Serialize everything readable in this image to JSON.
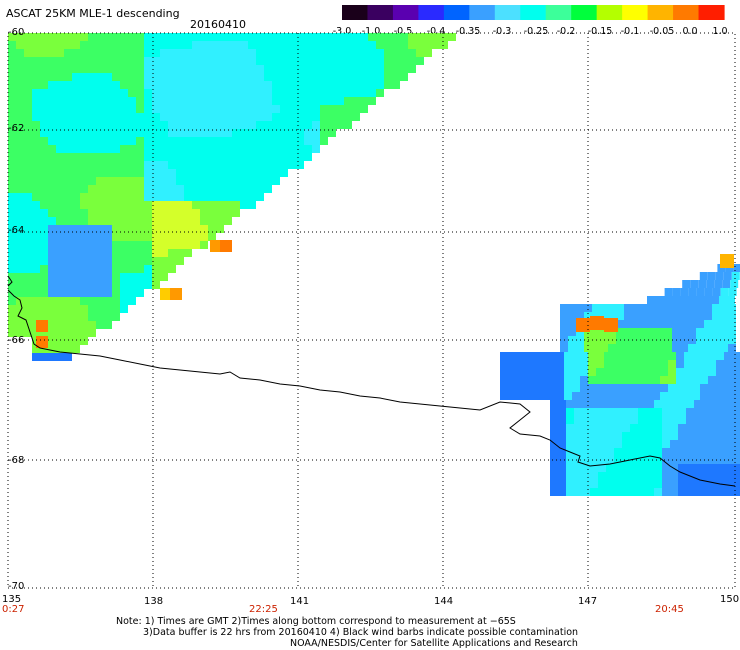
{
  "header": {
    "title": "ASCAT 25KM MLE-1 descending",
    "date": "20160410"
  },
  "colorbar": {
    "colors": [
      "#1a001a",
      "#3a0060",
      "#5a00b0",
      "#2a2aff",
      "#0064ff",
      "#3aa0ff",
      "#4ce0ff",
      "#00ffee",
      "#3cff9a",
      "#00ff3c",
      "#b4ff00",
      "#ffff00",
      "#ffb400",
      "#ff7a00",
      "#ff1e00"
    ],
    "tick_labels": [
      "-3.0",
      "-1.0",
      "-0.5",
      "-0.4",
      "-0.35",
      "-0.3",
      "-0.25",
      "-0.2",
      "-0.15",
      "-0.1",
      "-0.05",
      "0.0",
      "1.0"
    ]
  },
  "axes": {
    "y_ticks": [
      "-60",
      "-62",
      "-64",
      "-66",
      "-68",
      "-70"
    ],
    "x_ticks": [
      "135",
      "138",
      "141",
      "144",
      "147",
      "150"
    ],
    "time_labels": [
      "0:27",
      "22:25",
      "20:45"
    ]
  },
  "notes": {
    "line1": "Note: 1) Times are GMT 2)Times along bottom correspond to measurement at −65S",
    "line2": "3)Data buffer is 22 hrs from 20160410 4) Black wind barbs indicate possible contamination",
    "line3": "NOAA/NESDIS/Center for Satellite Applications and Research"
  }
}
